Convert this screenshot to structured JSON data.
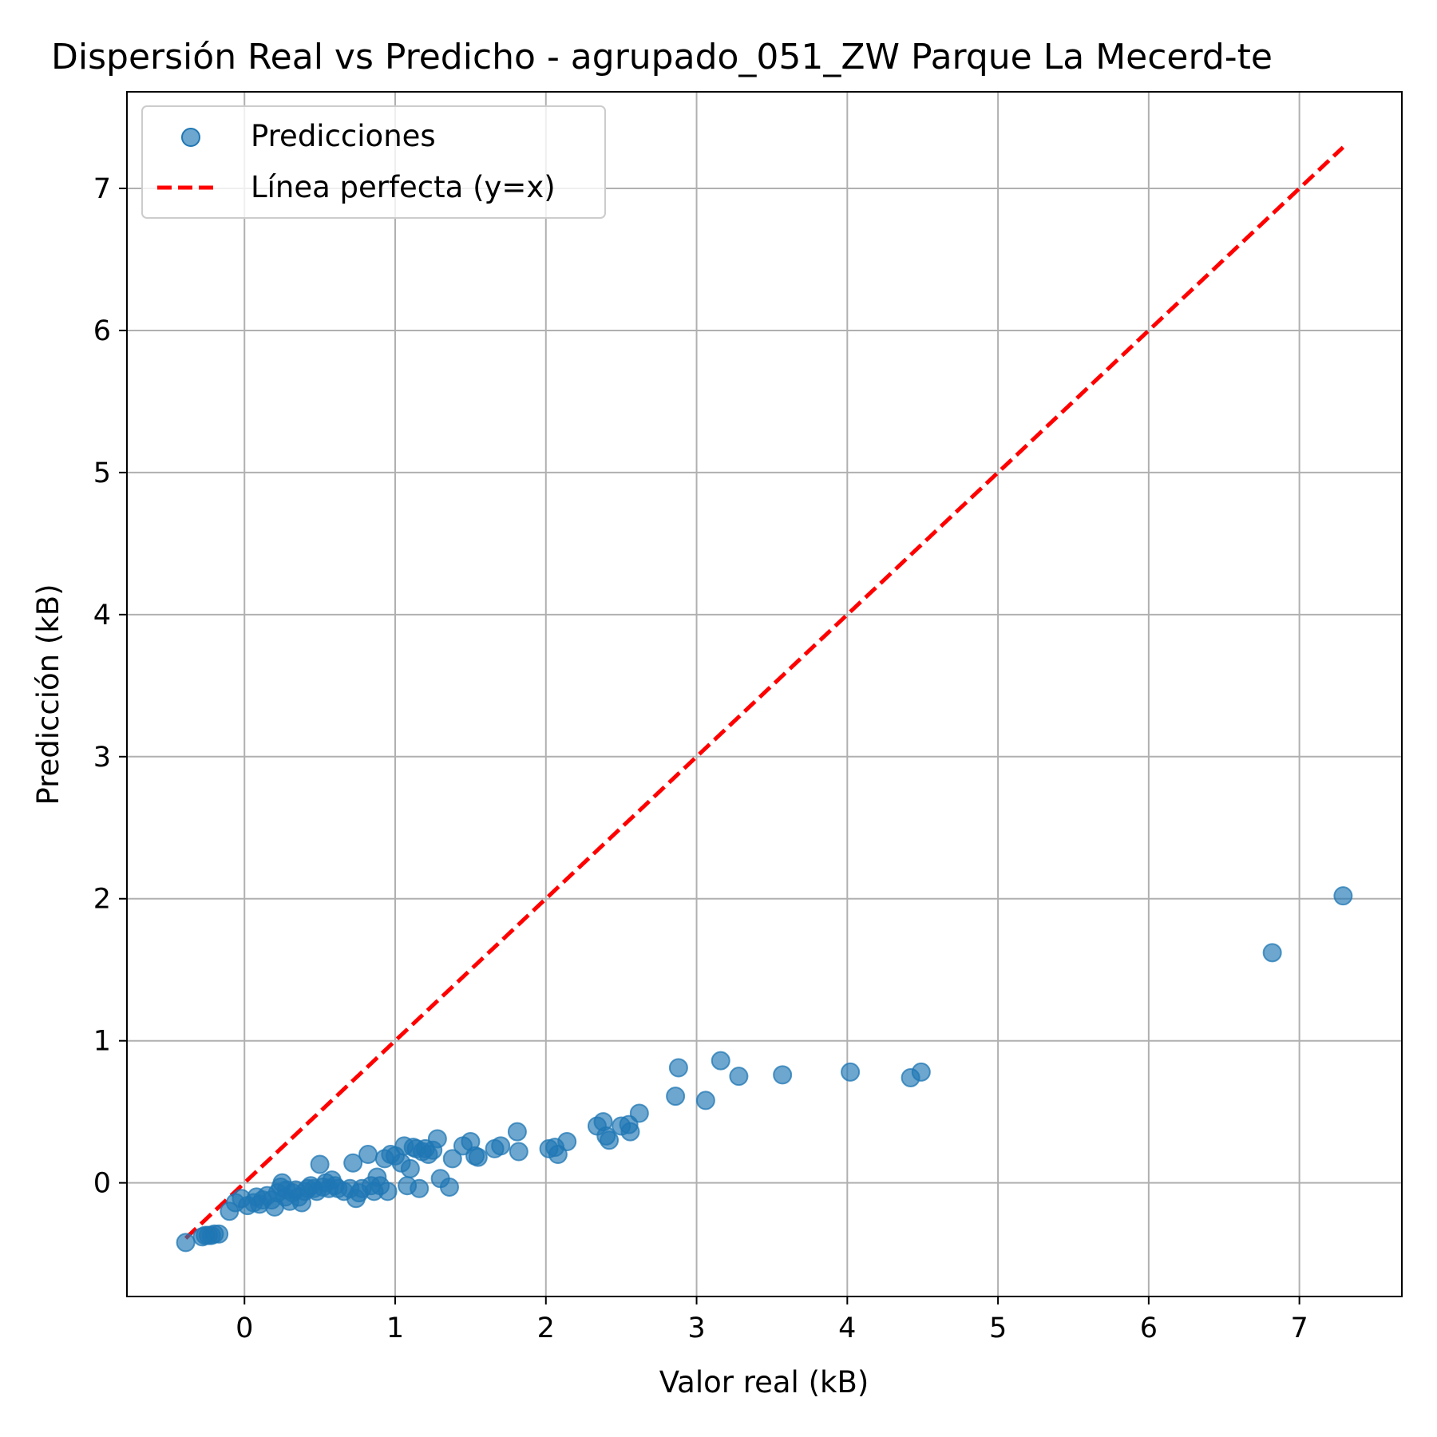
{
  "chart_data": {
    "type": "scatter",
    "title": "Dispersión Real vs Predicho - agrupado_051_ZW Parque La Mecerd-te",
    "xlabel": "Valor real (kB)",
    "ylabel": "Predicción (kB)",
    "xlim": [
      -0.78,
      7.68
    ],
    "ylim": [
      -0.8,
      7.68
    ],
    "xticks": [
      0,
      1,
      2,
      3,
      4,
      5,
      6,
      7
    ],
    "yticks": [
      0,
      1,
      2,
      3,
      4,
      5,
      6,
      7
    ],
    "grid": true,
    "legend_position": "top-left",
    "series": [
      {
        "name": "Predicciones",
        "kind": "scatter",
        "color": "#1f77b4",
        "points": [
          [
            -0.39,
            -0.42
          ],
          [
            -0.28,
            -0.38
          ],
          [
            -0.26,
            -0.37
          ],
          [
            -0.24,
            -0.37
          ],
          [
            -0.22,
            -0.37
          ],
          [
            -0.2,
            -0.36
          ],
          [
            -0.17,
            -0.36
          ],
          [
            -0.1,
            -0.2
          ],
          [
            -0.06,
            -0.14
          ],
          [
            -0.02,
            -0.11
          ],
          [
            0.02,
            -0.16
          ],
          [
            0.06,
            -0.14
          ],
          [
            0.08,
            -0.1
          ],
          [
            0.1,
            -0.15
          ],
          [
            0.12,
            -0.12
          ],
          [
            0.15,
            -0.09
          ],
          [
            0.18,
            -0.12
          ],
          [
            0.2,
            -0.17
          ],
          [
            0.22,
            -0.07
          ],
          [
            0.24,
            -0.03
          ],
          [
            0.25,
            0.0
          ],
          [
            0.27,
            -0.1
          ],
          [
            0.28,
            -0.05
          ],
          [
            0.3,
            -0.13
          ],
          [
            0.32,
            -0.07
          ],
          [
            0.34,
            -0.05
          ],
          [
            0.36,
            -0.1
          ],
          [
            0.38,
            -0.14
          ],
          [
            0.4,
            -0.06
          ],
          [
            0.42,
            -0.04
          ],
          [
            0.44,
            -0.02
          ],
          [
            0.46,
            -0.04
          ],
          [
            0.48,
            -0.06
          ],
          [
            0.5,
            0.13
          ],
          [
            0.52,
            -0.03
          ],
          [
            0.54,
            0.0
          ],
          [
            0.56,
            -0.04
          ],
          [
            0.58,
            0.02
          ],
          [
            0.6,
            -0.02
          ],
          [
            0.62,
            -0.04
          ],
          [
            0.66,
            -0.06
          ],
          [
            0.7,
            -0.04
          ],
          [
            0.72,
            0.14
          ],
          [
            0.74,
            -0.11
          ],
          [
            0.76,
            -0.07
          ],
          [
            0.78,
            -0.04
          ],
          [
            0.82,
            0.2
          ],
          [
            0.84,
            -0.02
          ],
          [
            0.86,
            -0.06
          ],
          [
            0.88,
            0.04
          ],
          [
            0.9,
            -0.02
          ],
          [
            0.93,
            0.17
          ],
          [
            0.95,
            -0.06
          ],
          [
            0.97,
            0.2
          ],
          [
            1.0,
            0.19
          ],
          [
            1.04,
            0.14
          ],
          [
            1.06,
            0.26
          ],
          [
            1.08,
            -0.02
          ],
          [
            1.1,
            0.1
          ],
          [
            1.12,
            0.25
          ],
          [
            1.14,
            0.24
          ],
          [
            1.16,
            -0.04
          ],
          [
            1.18,
            0.22
          ],
          [
            1.2,
            0.24
          ],
          [
            1.22,
            0.2
          ],
          [
            1.25,
            0.23
          ],
          [
            1.28,
            0.31
          ],
          [
            1.3,
            0.03
          ],
          [
            1.36,
            -0.03
          ],
          [
            1.38,
            0.17
          ],
          [
            1.45,
            0.26
          ],
          [
            1.5,
            0.29
          ],
          [
            1.53,
            0.19
          ],
          [
            1.55,
            0.18
          ],
          [
            1.66,
            0.24
          ],
          [
            1.7,
            0.26
          ],
          [
            1.81,
            0.36
          ],
          [
            1.82,
            0.22
          ],
          [
            2.02,
            0.24
          ],
          [
            2.06,
            0.25
          ],
          [
            2.08,
            0.2
          ],
          [
            2.14,
            0.29
          ],
          [
            2.34,
            0.4
          ],
          [
            2.38,
            0.43
          ],
          [
            2.4,
            0.33
          ],
          [
            2.42,
            0.3
          ],
          [
            2.5,
            0.4
          ],
          [
            2.55,
            0.41
          ],
          [
            2.56,
            0.36
          ],
          [
            2.62,
            0.49
          ],
          [
            2.86,
            0.61
          ],
          [
            2.88,
            0.81
          ],
          [
            3.06,
            0.58
          ],
          [
            3.16,
            0.86
          ],
          [
            3.28,
            0.75
          ],
          [
            3.57,
            0.76
          ],
          [
            4.02,
            0.78
          ],
          [
            4.42,
            0.74
          ],
          [
            4.49,
            0.78
          ],
          [
            6.82,
            1.62
          ],
          [
            7.29,
            2.02
          ]
        ]
      },
      {
        "name": "Línea perfecta (y=x)",
        "kind": "line",
        "color": "#ff0000",
        "style": "dashed",
        "points": [
          [
            -0.39,
            -0.39
          ],
          [
            7.29,
            7.29
          ]
        ]
      }
    ]
  }
}
